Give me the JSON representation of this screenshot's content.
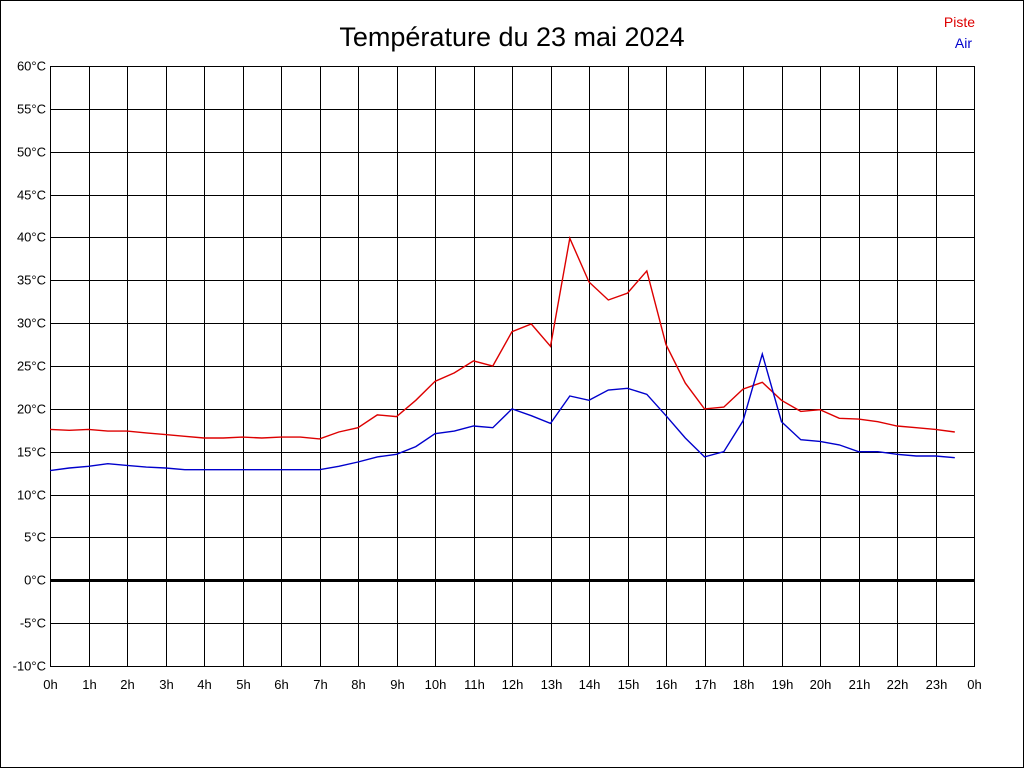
{
  "chart_data": {
    "type": "line",
    "title": "Température du 23 mai 2024",
    "xlabel": "",
    "ylabel": "",
    "ylim": [
      -10,
      60
    ],
    "xlim": [
      0,
      24
    ],
    "grid": true,
    "legend_position": "top-right",
    "y_ticks": [
      {
        "value": 60,
        "label": "60°C"
      },
      {
        "value": 55,
        "label": "55°C"
      },
      {
        "value": 50,
        "label": "50°C"
      },
      {
        "value": 45,
        "label": "45°C"
      },
      {
        "value": 40,
        "label": "40°C"
      },
      {
        "value": 35,
        "label": "35°C"
      },
      {
        "value": 30,
        "label": "30°C"
      },
      {
        "value": 25,
        "label": "25°C"
      },
      {
        "value": 20,
        "label": "20°C"
      },
      {
        "value": 15,
        "label": "15°C"
      },
      {
        "value": 10,
        "label": "10°C"
      },
      {
        "value": 5,
        "label": "5°C"
      },
      {
        "value": 0,
        "label": "0°C"
      },
      {
        "value": -5,
        "label": "-5°C"
      },
      {
        "value": -10,
        "label": "-10°C"
      }
    ],
    "x_ticks": [
      {
        "value": 0,
        "label": "0h"
      },
      {
        "value": 1,
        "label": "1h"
      },
      {
        "value": 2,
        "label": "2h"
      },
      {
        "value": 3,
        "label": "3h"
      },
      {
        "value": 4,
        "label": "4h"
      },
      {
        "value": 5,
        "label": "5h"
      },
      {
        "value": 6,
        "label": "6h"
      },
      {
        "value": 7,
        "label": "7h"
      },
      {
        "value": 8,
        "label": "8h"
      },
      {
        "value": 9,
        "label": "9h"
      },
      {
        "value": 10,
        "label": "10h"
      },
      {
        "value": 11,
        "label": "11h"
      },
      {
        "value": 12,
        "label": "12h"
      },
      {
        "value": 13,
        "label": "13h"
      },
      {
        "value": 14,
        "label": "14h"
      },
      {
        "value": 15,
        "label": "15h"
      },
      {
        "value": 16,
        "label": "16h"
      },
      {
        "value": 17,
        "label": "17h"
      },
      {
        "value": 18,
        "label": "18h"
      },
      {
        "value": 19,
        "label": "19h"
      },
      {
        "value": 20,
        "label": "20h"
      },
      {
        "value": 21,
        "label": "21h"
      },
      {
        "value": 22,
        "label": "22h"
      },
      {
        "value": 23,
        "label": "23h"
      },
      {
        "value": 24,
        "label": "0h"
      }
    ],
    "reference_line": {
      "value": 0,
      "color": "#000000"
    },
    "x": [
      0,
      0.5,
      1,
      1.5,
      2,
      2.5,
      3,
      3.5,
      4,
      4.5,
      5,
      5.5,
      6,
      6.5,
      7,
      7.5,
      8,
      8.5,
      9,
      9.5,
      10,
      10.5,
      11,
      11.5,
      12,
      12.5,
      13,
      13.5,
      14,
      14.5,
      15,
      15.5,
      16,
      16.5,
      17,
      17.5,
      18,
      18.5,
      19,
      19.5,
      20,
      20.5,
      21,
      21.5,
      22,
      22.5,
      23,
      23.5
    ],
    "series": [
      {
        "name": "Piste",
        "color": "#dd0000",
        "values": [
          17.6,
          17.5,
          17.6,
          17.4,
          17.4,
          17.2,
          17.0,
          16.8,
          16.6,
          16.6,
          16.7,
          16.6,
          16.7,
          16.7,
          16.5,
          17.3,
          17.8,
          19.3,
          19.1,
          21.0,
          23.2,
          24.2,
          25.6,
          25.0,
          29.0,
          29.9,
          27.3,
          39.9,
          34.8,
          32.7,
          33.5,
          36.1,
          27.5,
          23.0,
          20.0,
          20.2,
          22.3,
          23.1,
          21.0,
          19.7,
          19.9,
          18.9,
          18.8,
          18.5,
          18.0,
          17.8,
          17.6,
          17.3
        ]
      },
      {
        "name": "Air",
        "color": "#0000cc",
        "values": [
          12.8,
          13.1,
          13.3,
          13.6,
          13.4,
          13.2,
          13.1,
          12.9,
          12.9,
          12.9,
          12.9,
          12.9,
          12.9,
          12.9,
          12.9,
          13.3,
          13.8,
          14.4,
          14.7,
          15.6,
          17.1,
          17.4,
          18.0,
          17.8,
          20.0,
          19.2,
          18.3,
          21.5,
          21.0,
          22.2,
          22.4,
          21.7,
          19.2,
          16.6,
          14.4,
          15.0,
          18.6,
          26.4,
          18.5,
          16.4,
          16.2,
          15.8,
          15.0,
          15.0,
          14.7,
          14.5,
          14.5,
          14.3
        ]
      }
    ]
  },
  "legend": {
    "items": [
      {
        "label": "Piste",
        "color": "#dd0000"
      },
      {
        "label": "Air",
        "color": "#0000cc"
      }
    ]
  },
  "colors": {
    "background": "#ffffff",
    "grid": "#000000",
    "text": "#000000"
  }
}
